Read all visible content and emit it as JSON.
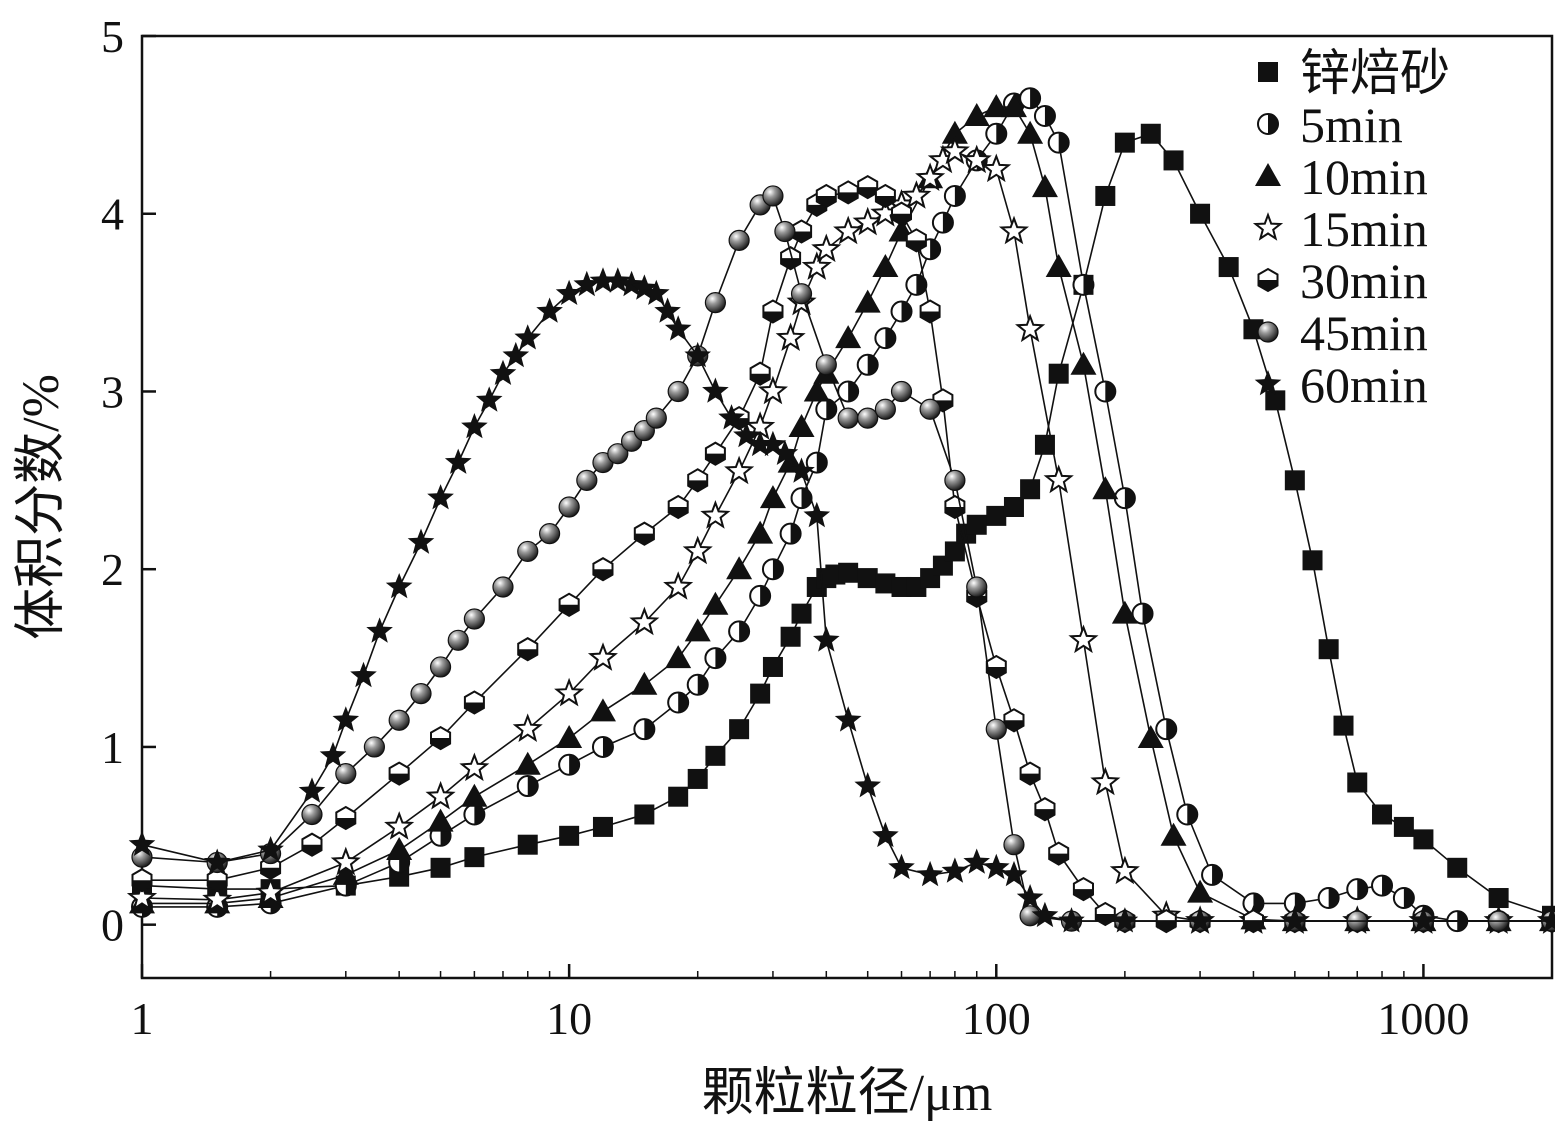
{
  "chart_data": {
    "type": "scatter",
    "xlabel": "颗粒粒径/μm",
    "ylabel": "体积分数/%",
    "xscale": "log",
    "xlim": [
      1,
      2000
    ],
    "ylim": [
      -0.3,
      5
    ],
    "xticks": [
      1,
      10,
      100,
      1000
    ],
    "xtick_labels": [
      "1",
      "10",
      "100",
      "1000"
    ],
    "yticks": [
      0,
      1,
      2,
      3,
      4,
      5
    ],
    "ytick_labels": [
      "0",
      "1",
      "2",
      "3",
      "4",
      "5"
    ],
    "grid": false,
    "legend_position": "top-right",
    "series": [
      {
        "name": "锌焙砂",
        "marker": "square",
        "x": [
          1,
          1.5,
          2,
          3,
          4,
          5,
          6,
          8,
          10,
          12,
          15,
          18,
          20,
          22,
          25,
          28,
          30,
          33,
          35,
          38,
          40,
          42,
          45,
          50,
          55,
          60,
          65,
          70,
          75,
          80,
          85,
          90,
          100,
          110,
          120,
          130,
          140,
          160,
          180,
          200,
          230,
          260,
          300,
          350,
          400,
          450,
          500,
          550,
          600,
          650,
          700,
          800,
          900,
          1000,
          1200,
          1500,
          2000
        ],
        "y": [
          0.22,
          0.2,
          0.2,
          0.22,
          0.27,
          0.32,
          0.38,
          0.45,
          0.5,
          0.55,
          0.62,
          0.72,
          0.82,
          0.95,
          1.1,
          1.3,
          1.45,
          1.62,
          1.75,
          1.9,
          1.95,
          1.97,
          1.98,
          1.95,
          1.92,
          1.9,
          1.9,
          1.95,
          2.02,
          2.1,
          2.2,
          2.25,
          2.3,
          2.35,
          2.45,
          2.7,
          3.1,
          3.6,
          4.1,
          4.4,
          4.45,
          4.3,
          4.0,
          3.7,
          3.35,
          2.95,
          2.5,
          2.05,
          1.55,
          1.12,
          0.8,
          0.62,
          0.55,
          0.48,
          0.32,
          0.15,
          0.05
        ]
      },
      {
        "name": "5min",
        "marker": "half-circle",
        "x": [
          1,
          1.5,
          2,
          3,
          4,
          5,
          6,
          8,
          10,
          12,
          15,
          18,
          20,
          22,
          25,
          28,
          30,
          33,
          35,
          38,
          40,
          45,
          50,
          55,
          60,
          65,
          70,
          75,
          80,
          90,
          100,
          110,
          120,
          130,
          140,
          160,
          180,
          200,
          220,
          250,
          280,
          320,
          400,
          500,
          600,
          700,
          800,
          900,
          1000,
          1200,
          1500,
          2000
        ],
        "y": [
          0.1,
          0.1,
          0.12,
          0.22,
          0.35,
          0.5,
          0.62,
          0.78,
          0.9,
          1.0,
          1.1,
          1.25,
          1.35,
          1.5,
          1.65,
          1.85,
          2.0,
          2.2,
          2.4,
          2.6,
          2.9,
          3.0,
          3.15,
          3.3,
          3.45,
          3.6,
          3.8,
          3.95,
          4.1,
          4.3,
          4.45,
          4.62,
          4.65,
          4.55,
          4.4,
          3.6,
          3.0,
          2.4,
          1.75,
          1.1,
          0.62,
          0.28,
          0.12,
          0.12,
          0.15,
          0.2,
          0.22,
          0.15,
          0.05,
          0.02,
          0.02,
          0.02
        ]
      },
      {
        "name": "10min",
        "marker": "triangle",
        "x": [
          1,
          1.5,
          2,
          3,
          4,
          5,
          6,
          8,
          10,
          12,
          15,
          18,
          20,
          22,
          25,
          28,
          30,
          33,
          35,
          38,
          40,
          45,
          50,
          55,
          60,
          70,
          80,
          90,
          100,
          110,
          120,
          130,
          140,
          160,
          180,
          200,
          230,
          260,
          300,
          400,
          500,
          700,
          1000,
          1500,
          2000
        ],
        "y": [
          0.12,
          0.12,
          0.15,
          0.28,
          0.42,
          0.58,
          0.72,
          0.9,
          1.05,
          1.2,
          1.35,
          1.5,
          1.65,
          1.8,
          2.0,
          2.2,
          2.4,
          2.6,
          2.8,
          3.0,
          3.1,
          3.3,
          3.5,
          3.7,
          3.9,
          4.2,
          4.45,
          4.55,
          4.6,
          4.6,
          4.45,
          4.15,
          3.7,
          3.15,
          2.45,
          1.75,
          1.05,
          0.5,
          0.18,
          0.03,
          0.02,
          0.02,
          0.02,
          0.02,
          0.02
        ]
      },
      {
        "name": "15min",
        "marker": "star-open",
        "x": [
          1,
          1.5,
          2,
          3,
          4,
          5,
          6,
          8,
          10,
          12,
          15,
          18,
          20,
          22,
          25,
          28,
          30,
          33,
          35,
          38,
          40,
          45,
          50,
          55,
          60,
          65,
          70,
          75,
          80,
          90,
          100,
          110,
          120,
          140,
          160,
          180,
          200,
          250,
          300,
          400,
          500,
          700,
          1000,
          1500,
          2000
        ],
        "y": [
          0.15,
          0.14,
          0.18,
          0.35,
          0.55,
          0.72,
          0.88,
          1.1,
          1.3,
          1.5,
          1.7,
          1.9,
          2.1,
          2.3,
          2.55,
          2.8,
          3.0,
          3.3,
          3.5,
          3.7,
          3.8,
          3.9,
          3.95,
          4.0,
          4.05,
          4.1,
          4.2,
          4.3,
          4.35,
          4.3,
          4.25,
          3.9,
          3.35,
          2.5,
          1.6,
          0.8,
          0.3,
          0.05,
          0.02,
          0.02,
          0.02,
          0.02,
          0.02,
          0.02,
          0.02
        ]
      },
      {
        "name": "30min",
        "marker": "hexagon",
        "x": [
          1,
          1.5,
          2,
          2.5,
          3,
          4,
          5,
          6,
          8,
          10,
          12,
          15,
          18,
          20,
          22,
          25,
          28,
          30,
          33,
          35,
          38,
          40,
          45,
          50,
          55,
          60,
          65,
          70,
          75,
          80,
          90,
          100,
          110,
          120,
          130,
          140,
          160,
          180,
          200,
          250,
          300,
          400,
          500,
          700,
          1000,
          1500,
          2000
        ],
        "y": [
          0.25,
          0.25,
          0.32,
          0.45,
          0.6,
          0.85,
          1.05,
          1.25,
          1.55,
          1.8,
          2.0,
          2.2,
          2.35,
          2.5,
          2.65,
          2.85,
          3.1,
          3.45,
          3.75,
          3.9,
          4.05,
          4.1,
          4.12,
          4.15,
          4.1,
          4.0,
          3.85,
          3.45,
          2.95,
          2.35,
          1.85,
          1.45,
          1.15,
          0.85,
          0.65,
          0.4,
          0.2,
          0.06,
          0.02,
          0.02,
          0.02,
          0.02,
          0.02,
          0.02,
          0.02,
          0.02,
          0.02
        ]
      },
      {
        "name": "45min",
        "marker": "sphere",
        "x": [
          1,
          1.5,
          2,
          2.5,
          3,
          3.5,
          4,
          4.5,
          5,
          5.5,
          6,
          7,
          8,
          9,
          10,
          11,
          12,
          13,
          14,
          15,
          16,
          18,
          20,
          22,
          25,
          28,
          30,
          32,
          35,
          40,
          45,
          50,
          55,
          60,
          70,
          80,
          90,
          100,
          110,
          120,
          150,
          200,
          300,
          500,
          700,
          1000,
          1500,
          2000
        ],
        "y": [
          0.38,
          0.35,
          0.4,
          0.62,
          0.85,
          1.0,
          1.15,
          1.3,
          1.45,
          1.6,
          1.72,
          1.9,
          2.1,
          2.2,
          2.35,
          2.5,
          2.6,
          2.65,
          2.72,
          2.78,
          2.85,
          3.0,
          3.2,
          3.5,
          3.85,
          4.05,
          4.1,
          3.9,
          3.55,
          3.15,
          2.85,
          2.85,
          2.9,
          3.0,
          2.9,
          2.5,
          1.9,
          1.1,
          0.45,
          0.05,
          0.02,
          0.02,
          0.02,
          0.02,
          0.02,
          0.02,
          0.02,
          0.02
        ]
      },
      {
        "name": "60min",
        "marker": "star-filled",
        "x": [
          1,
          1.5,
          2,
          2.5,
          2.8,
          3,
          3.3,
          3.6,
          4,
          4.5,
          5,
          5.5,
          6,
          6.5,
          7,
          7.5,
          8,
          9,
          10,
          11,
          12,
          13,
          14,
          15,
          16,
          17,
          18,
          20,
          22,
          24,
          26,
          28,
          30,
          32,
          35,
          38,
          40,
          45,
          50,
          55,
          60,
          70,
          80,
          90,
          100,
          110,
          120,
          130,
          150,
          200,
          300,
          500,
          1000,
          2000
        ],
        "y": [
          0.45,
          0.35,
          0.42,
          0.75,
          0.95,
          1.15,
          1.4,
          1.65,
          1.9,
          2.15,
          2.4,
          2.6,
          2.8,
          2.95,
          3.1,
          3.2,
          3.3,
          3.45,
          3.55,
          3.6,
          3.62,
          3.62,
          3.6,
          3.58,
          3.55,
          3.45,
          3.35,
          3.2,
          3.0,
          2.85,
          2.75,
          2.7,
          2.7,
          2.65,
          2.55,
          2.3,
          1.6,
          1.15,
          0.78,
          0.5,
          0.32,
          0.28,
          0.3,
          0.35,
          0.32,
          0.28,
          0.15,
          0.05,
          0.02,
          0.02,
          0.02,
          0.02,
          0.02,
          0.02
        ]
      }
    ]
  }
}
